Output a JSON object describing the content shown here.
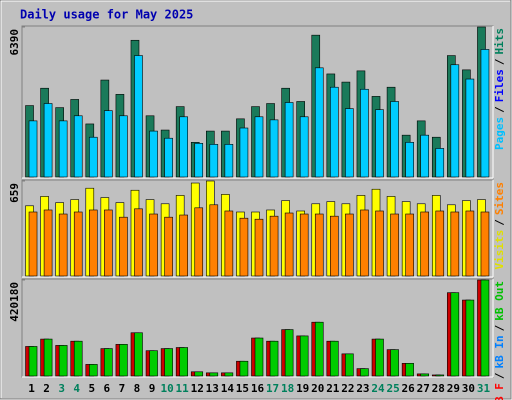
{
  "title": "Daily usage for May 2025",
  "days": [
    "1",
    "2",
    "3",
    "4",
    "5",
    "6",
    "7",
    "8",
    "9",
    "10",
    "11",
    "12",
    "13",
    "14",
    "15",
    "16",
    "17",
    "18",
    "19",
    "20",
    "21",
    "22",
    "23",
    "24",
    "25",
    "26",
    "27",
    "28",
    "29",
    "30",
    "31"
  ],
  "highlighted_days": [
    2,
    3,
    9,
    10,
    16,
    17,
    23,
    24,
    30
  ],
  "day_color": "#000000",
  "highlight_color": "#00805c",
  "chart_data": [
    {
      "type": "bar",
      "ylim": [
        0,
        6390
      ],
      "yticks": [
        6390
      ],
      "legend": [
        {
          "text": "Pages",
          "color": "#00c0ff"
        },
        {
          "text": "/",
          "color": "#000000"
        },
        {
          "text": "Files",
          "color": "#0000ff"
        },
        {
          "text": "/",
          "color": "#000000"
        },
        {
          "text": "Hits",
          "color": "#00805c"
        }
      ],
      "series": [
        {
          "color": "#1a7a5a",
          "values": [
            3043,
            3782,
            2956,
            3304,
            2260,
            4130,
            3521,
            5825,
            2608,
            2000,
            2999,
            1478,
            1956,
            1956,
            2478,
            2999,
            3130,
            3782,
            3217,
            6042,
            4390,
            4043,
            4521,
            3434,
            3825,
            1782,
            2391,
            1695,
            5173,
            4564,
            6390
          ]
        },
        {
          "color": "#00ccff",
          "values": [
            2391,
            3130,
            2391,
            2608,
            1695,
            2826,
            2608,
            5173,
            1956,
            1652,
            2565,
            1434,
            1391,
            1391,
            2087,
            2565,
            2434,
            3173,
            2565,
            4651,
            3825,
            2913,
            3738,
            2869,
            3217,
            1478,
            1782,
            1217,
            4782,
            4173,
            5434
          ]
        }
      ]
    },
    {
      "type": "bar",
      "ylim": [
        0,
        659
      ],
      "yticks": [
        659
      ],
      "legend": [
        {
          "text": "Visits",
          "color": "#e0e000"
        },
        {
          "text": "/",
          "color": "#000000"
        },
        {
          "text": "Sites",
          "color": "#ff8000"
        }
      ],
      "series": [
        {
          "color": "#ffff00",
          "values": [
            487,
            552,
            509,
            530,
            609,
            544,
            509,
            595,
            530,
            501,
            559,
            645,
            659,
            566,
            444,
            444,
            458,
            523,
            451,
            501,
            516,
            501,
            559,
            602,
            552,
            516,
            501,
            559,
            494,
            523,
            530
          ]
        },
        {
          "color": "#ff8000",
          "values": [
            444,
            458,
            430,
            444,
            458,
            458,
            408,
            466,
            430,
            408,
            423,
            473,
            494,
            451,
            401,
            394,
            415,
            437,
            430,
            430,
            415,
            430,
            458,
            451,
            430,
            430,
            444,
            451,
            444,
            451,
            444
          ]
        }
      ]
    },
    {
      "type": "bar",
      "ylim": [
        0,
        420180
      ],
      "yticks": [
        420180
      ],
      "legend": [
        {
          "text": "kB F",
          "color": "#ff0000"
        },
        {
          "text": "/",
          "color": "#000000"
        },
        {
          "text": "kB In",
          "color": "#0080ff"
        },
        {
          "text": "/",
          "color": "#000000"
        },
        {
          "text": "kB Out",
          "color": "#00c000"
        }
      ],
      "series": [
        {
          "color": "#cc0000",
          "values": [
            129280,
            161600,
            133900,
            152360,
            50790,
            120040,
            138510,
            189300,
            110810,
            120040,
            124660,
            18470,
            13850,
            13850,
            64640,
            166210,
            152360,
            203150,
            175450,
            235470,
            152360,
            96960,
            32320,
            161600,
            115430,
            55400,
            9230,
            4620,
            364740,
            332420,
            420180
          ]
        },
        {
          "color": "#00cc00",
          "values": [
            129280,
            161600,
            133900,
            152360,
            50790,
            120040,
            138510,
            189300,
            110810,
            120040,
            124660,
            18470,
            13850,
            13850,
            64640,
            166210,
            152360,
            203150,
            175450,
            235470,
            152360,
            96960,
            32320,
            161600,
            115430,
            55400,
            9230,
            4620,
            364740,
            332420,
            420180
          ]
        }
      ]
    }
  ]
}
